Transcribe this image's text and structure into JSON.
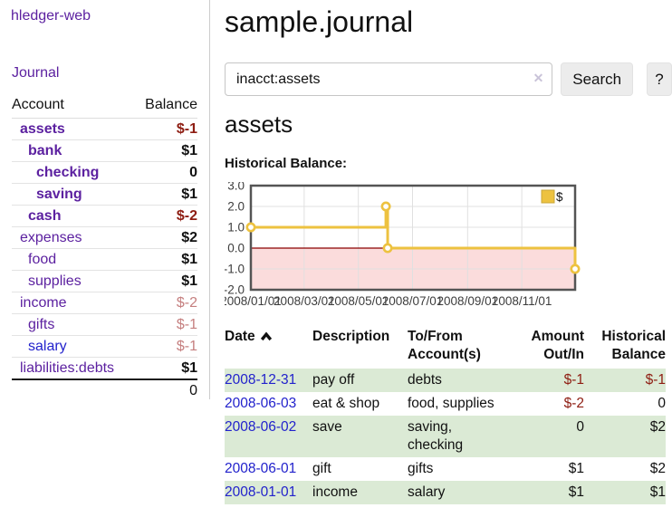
{
  "colors": {
    "link_purple": "#5c21a0",
    "link_blue": "#2222cc",
    "negative_strong": "#8e1d12",
    "negative_faded": "#c57f7f",
    "row_shade_green": "#dbead5",
    "chart_series_gold": "#edc240",
    "chart_negative_region_pink": "#fbdcdc",
    "chart_zero_line_red": "#8b0000",
    "chart_border_gray": "#545454"
  },
  "sidebar": {
    "app_title": "hledger-web",
    "journal_link": "Journal",
    "accounts_table": {
      "account_header": "Account",
      "balance_header": "Balance",
      "rows": [
        {
          "name": "assets",
          "balance": "$-1",
          "depth": 1,
          "bold": true,
          "bal_class": "neg-strong"
        },
        {
          "name": "bank",
          "balance": "$1",
          "depth": 2,
          "bold": true,
          "bal_class": ""
        },
        {
          "name": "checking",
          "balance": "0",
          "depth": 3,
          "bold": true,
          "bal_class": ""
        },
        {
          "name": "saving",
          "balance": "$1",
          "depth": 3,
          "bold": true,
          "bal_class": ""
        },
        {
          "name": "cash",
          "balance": "$-2",
          "depth": 2,
          "bold": true,
          "bal_class": "neg-strong"
        },
        {
          "name": "expenses",
          "balance": "$2",
          "depth": 1,
          "bold": false,
          "bal_class": ""
        },
        {
          "name": "food",
          "balance": "$1",
          "depth": 2,
          "bold": false,
          "bal_class": ""
        },
        {
          "name": "supplies",
          "balance": "$1",
          "depth": 2,
          "bold": false,
          "bal_class": ""
        },
        {
          "name": "income",
          "balance": "$-2",
          "depth": 1,
          "bold": false,
          "bal_class": "neg-faded"
        },
        {
          "name": "gifts",
          "balance": "$-1",
          "depth": 2,
          "bold": false,
          "bal_class": "neg-faded"
        },
        {
          "name": "salary",
          "balance": "$-1",
          "depth": 2,
          "bold": false,
          "bal_class": "neg-faded",
          "link": "blue"
        },
        {
          "name": "liabilities:debts",
          "balance": "$1",
          "depth": 1,
          "bold": false,
          "bal_class": ""
        }
      ],
      "total": "0"
    }
  },
  "main": {
    "title": "sample.journal",
    "search": {
      "value": "inacct:assets",
      "clear_icon": "✕",
      "search_button": "Search",
      "help_button": "?"
    },
    "account_heading": "assets",
    "chart_heading": "Historical Balance:"
  },
  "register": {
    "headers": {
      "date": "Date",
      "description": "Description",
      "account": "To/From Account(s)",
      "amount": "Amount Out/In",
      "balance": "Historical Balance"
    },
    "rows": [
      {
        "date": "2008-12-31",
        "description": "pay off",
        "accounts": "debts",
        "amount": "$-1",
        "balance": "$-1",
        "shaded": true
      },
      {
        "date": "2008-06-03",
        "description": "eat & shop",
        "accounts": "food, supplies",
        "amount": "$-2",
        "balance": "0",
        "shaded": false
      },
      {
        "date": "2008-06-02",
        "description": "save",
        "accounts": "saving, checking",
        "amount": "0",
        "balance": "$2",
        "shaded": true
      },
      {
        "date": "2008-06-01",
        "description": "gift",
        "accounts": "gifts",
        "amount": "$1",
        "balance": "$2",
        "shaded": false
      },
      {
        "date": "2008-01-01",
        "description": "income",
        "accounts": "salary",
        "amount": "$1",
        "balance": "$1",
        "shaded": true
      }
    ]
  },
  "chart_data": {
    "type": "line",
    "title": "Historical Balance:",
    "x_start": "2008-01-01",
    "x_end": "2008-12-31",
    "ylim": [
      -2,
      3
    ],
    "yticks": [
      {
        "label": "3.0",
        "value": 3
      },
      {
        "label": "2.0",
        "value": 2
      },
      {
        "label": "1.0",
        "value": 1
      },
      {
        "label": "0.0",
        "value": 0
      },
      {
        "label": "-1.0",
        "value": -1
      },
      {
        "label": "-2.0",
        "value": -2
      }
    ],
    "xticks": [
      {
        "label": "2008/01/01",
        "date": "2008-01-01"
      },
      {
        "label": "2008/03/01",
        "date": "2008-03-01"
      },
      {
        "label": "2008/05/01",
        "date": "2008-05-01"
      },
      {
        "label": "2008/07/01",
        "date": "2008-07-01"
      },
      {
        "label": "2008/09/01",
        "date": "2008-09-01"
      },
      {
        "label": "2008/11/01",
        "date": "2008-11-01"
      }
    ],
    "series": [
      {
        "name": "$",
        "color": "#edc240",
        "points": [
          [
            "2008-01-01",
            1
          ],
          [
            "2008-06-01",
            1
          ],
          [
            "2008-06-01",
            2
          ],
          [
            "2008-06-03",
            2
          ],
          [
            "2008-06-03",
            0
          ],
          [
            "2008-12-31",
            0
          ],
          [
            "2008-12-31",
            -1
          ]
        ],
        "markers": [
          [
            "2008-01-01",
            1
          ],
          [
            "2008-06-01",
            2
          ],
          [
            "2008-06-03",
            0
          ],
          [
            "2008-12-31",
            -1
          ]
        ]
      }
    ],
    "legend": {
      "label": "$",
      "position": "top-right"
    },
    "grid": true,
    "negative_region": true,
    "zero_line": true
  }
}
